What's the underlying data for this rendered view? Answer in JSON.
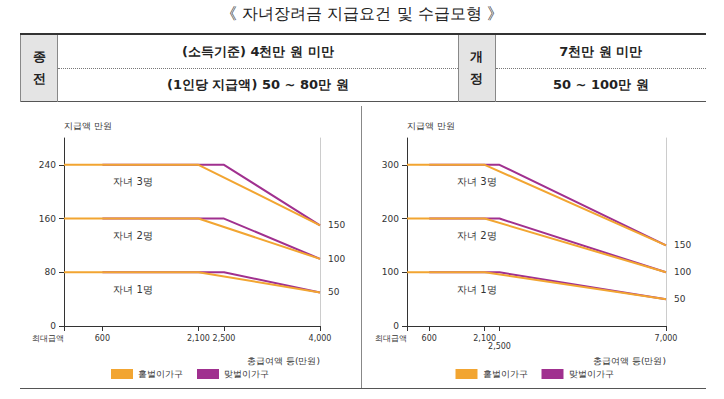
{
  "title": "《 자녀장려금 지급요건 및 수급모형 》",
  "table": {
    "columns": [
      {
        "header": "종전",
        "lines": [
          "(소득기준) 4천만 원 미만",
          "(1인당 지급액) 50 ~ 80만 원"
        ]
      },
      {
        "header": "개정",
        "lines": [
          "7천만 원 미만",
          "50 ~ 100만 원"
        ]
      }
    ]
  },
  "chart_data": [
    {
      "type": "line",
      "ylabel": "지급액 만원",
      "xlabel": "총급여액 등(만원)",
      "xlim": [
        0,
        4000
      ],
      "xticks": [
        {
          "value": 0,
          "label": "최대급액"
        },
        600,
        {
          "value": 2100,
          "label": "2,100"
        },
        {
          "value": 2500,
          "label": "2,500"
        },
        {
          "value": 4000,
          "label": "4,000"
        }
      ],
      "ylim": [
        0,
        280
      ],
      "yticks": [
        0,
        80,
        160,
        240
      ],
      "y2lim": [
        0,
        280
      ],
      "y2ticks": [
        50,
        100,
        150
      ],
      "grid": false,
      "legend": "bottom",
      "groups": [
        {
          "label": "자녀 3명",
          "series": [
            {
              "name": "홑벌이가구",
              "color": "#f2a531",
              "x": [
                0,
                2100,
                4000
              ],
              "values": [
                240,
                240,
                150
              ]
            },
            {
              "name": "맞벌이가구",
              "color": "#a0308f",
              "x": [
                600,
                2500,
                4000
              ],
              "values": [
                240,
                240,
                150
              ]
            }
          ]
        },
        {
          "label": "자녀 2명",
          "series": [
            {
              "name": "홑벌이가구",
              "color": "#f2a531",
              "x": [
                0,
                2100,
                4000
              ],
              "values": [
                160,
                160,
                100
              ]
            },
            {
              "name": "맞벌이가구",
              "color": "#a0308f",
              "x": [
                600,
                2500,
                4000
              ],
              "values": [
                160,
                160,
                100
              ]
            }
          ]
        },
        {
          "label": "자녀 1명",
          "series": [
            {
              "name": "홑벌이가구",
              "color": "#f2a531",
              "x": [
                0,
                2100,
                4000
              ],
              "values": [
                80,
                80,
                50
              ]
            },
            {
              "name": "맞벌이가구",
              "color": "#a0308f",
              "x": [
                600,
                2500,
                4000
              ],
              "values": [
                80,
                80,
                50
              ]
            }
          ]
        }
      ]
    },
    {
      "type": "line",
      "ylabel": "지급액 만원",
      "xlabel": "총급여액 등(만원)",
      "xlim": [
        0,
        7000
      ],
      "xticks": [
        {
          "value": 0,
          "label": "최대급액"
        },
        600,
        {
          "value": 2100,
          "label": "2,100"
        },
        {
          "value": 2500,
          "label": "2,500"
        },
        {
          "value": 7000,
          "label": "7,000"
        }
      ],
      "ylim": [
        0,
        350
      ],
      "yticks": [
        0,
        100,
        200,
        300
      ],
      "y2lim": [
        0,
        350
      ],
      "y2ticks": [
        50,
        100,
        150
      ],
      "grid": false,
      "legend": "bottom",
      "groups": [
        {
          "label": "자녀 3명",
          "series": [
            {
              "name": "홑벌이가구",
              "color": "#f2a531",
              "x": [
                0,
                2100,
                7000
              ],
              "values": [
                300,
                300,
                150
              ]
            },
            {
              "name": "맞벌이가구",
              "color": "#a0308f",
              "x": [
                600,
                2500,
                7000
              ],
              "values": [
                300,
                300,
                150
              ]
            }
          ]
        },
        {
          "label": "자녀 2명",
          "series": [
            {
              "name": "홑벌이가구",
              "color": "#f2a531",
              "x": [
                0,
                2100,
                7000
              ],
              "values": [
                200,
                200,
                100
              ]
            },
            {
              "name": "맞벌이가구",
              "color": "#a0308f",
              "x": [
                600,
                2500,
                7000
              ],
              "values": [
                200,
                200,
                100
              ]
            }
          ]
        },
        {
          "label": "자녀 1명",
          "series": [
            {
              "name": "홑벌이가구",
              "color": "#f2a531",
              "x": [
                0,
                2100,
                7000
              ],
              "values": [
                100,
                100,
                50
              ]
            },
            {
              "name": "맞벌이가구",
              "color": "#a0308f",
              "x": [
                600,
                2500,
                7000
              ],
              "values": [
                100,
                100,
                50
              ]
            }
          ]
        }
      ]
    }
  ]
}
